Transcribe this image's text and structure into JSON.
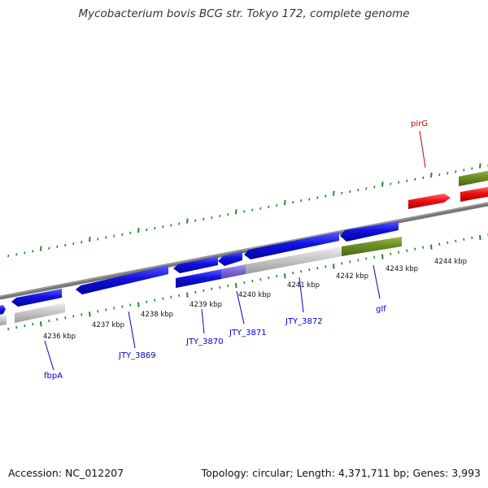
{
  "title": "Mycobacterium bovis BCG str. Tokyo 172, complete genome",
  "footer": {
    "accession": "Accession: NC_012207",
    "summary": "Topology: circular; Length: 4,371,711 bp; Genes: 3,993"
  },
  "colors": {
    "backbone": "#808080",
    "tick": "#228B22",
    "blue_gene": "#1212dd",
    "red_gene": "#ee1111",
    "green_gene": "#6b8e23",
    "gray_gene": "#c8c8c8",
    "pseudo_gene": "#7b68d8",
    "label_blue": "#0000cc",
    "label_red": "#cc0000"
  },
  "kbp_labels": [
    "4236 kbp",
    "4237 kbp",
    "4238 kbp",
    "4239 kbp",
    "4240 kbp",
    "4241 kbp",
    "4242 kbp",
    "4243 kbp",
    "4244 kbp"
  ],
  "gene_labels": [
    {
      "key": "fbpa",
      "text": "fbpA",
      "color": "blue"
    },
    {
      "key": "jty3869",
      "text": "JTY_3869",
      "color": "blue"
    },
    {
      "key": "jty3870",
      "text": "JTY_3870",
      "color": "blue"
    },
    {
      "key": "jty3871",
      "text": "JTY_3871",
      "color": "blue"
    },
    {
      "key": "jty3872",
      "text": "JTY_3872",
      "color": "blue"
    },
    {
      "key": "glf",
      "text": "glf",
      "color": "blue"
    },
    {
      "key": "pirg",
      "text": "pirG",
      "color": "red"
    }
  ]
}
